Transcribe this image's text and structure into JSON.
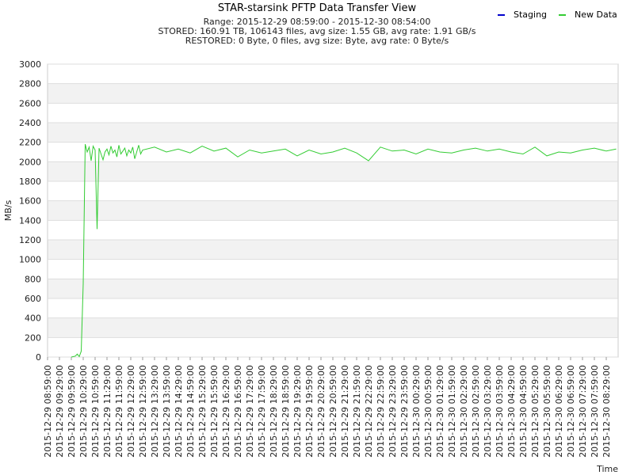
{
  "chart_data": {
    "type": "line",
    "title": "STAR-starsink PFTP Data Transfer View",
    "subtitles": [
      "Range: 2015-12-29 08:59:00 - 2015-12-30 08:54:00",
      "STORED: 160.91 TB, 106143 files, avg size: 1.55 GB, avg rate: 1.91 GB/s",
      "RESTORED: 0 Byte, 0 files, avg size:  Byte, avg rate: 0 Byte/s"
    ],
    "xlabel": "Time",
    "ylabel": "MB/s",
    "ylim": [
      0,
      3000
    ],
    "yticks": [
      0,
      200,
      400,
      600,
      800,
      1000,
      1200,
      1400,
      1600,
      1800,
      2000,
      2200,
      2400,
      2600,
      2800,
      3000
    ],
    "grid": true,
    "legend_position": "top-right",
    "xlim": [
      "2015-12-29 08:59:00",
      "2015-12-30 08:59:00"
    ],
    "xticks": [
      "2015-12-29 08:59:00",
      "2015-12-29 09:29:00",
      "2015-12-29 09:59:00",
      "2015-12-29 10:29:00",
      "2015-12-29 10:59:00",
      "2015-12-29 11:29:00",
      "2015-12-29 11:59:00",
      "2015-12-29 12:29:00",
      "2015-12-29 12:59:00",
      "2015-12-29 13:29:00",
      "2015-12-29 13:59:00",
      "2015-12-29 14:29:00",
      "2015-12-29 14:59:00",
      "2015-12-29 15:29:00",
      "2015-12-29 15:59:00",
      "2015-12-29 16:29:00",
      "2015-12-29 16:59:00",
      "2015-12-29 17:29:00",
      "2015-12-29 17:59:00",
      "2015-12-29 18:29:00",
      "2015-12-29 18:59:00",
      "2015-12-29 19:29:00",
      "2015-12-29 19:59:00",
      "2015-12-29 20:29:00",
      "2015-12-29 20:59:00",
      "2015-12-29 21:29:00",
      "2015-12-29 21:59:00",
      "2015-12-29 22:29:00",
      "2015-12-29 22:59:00",
      "2015-12-29 23:29:00",
      "2015-12-29 23:59:00",
      "2015-12-30 00:29:00",
      "2015-12-30 00:59:00",
      "2015-12-30 01:29:00",
      "2015-12-30 01:59:00",
      "2015-12-30 02:29:00",
      "2015-12-30 02:59:00",
      "2015-12-30 03:29:00",
      "2015-12-30 03:59:00",
      "2015-12-30 04:29:00",
      "2015-12-30 04:59:00",
      "2015-12-30 05:29:00",
      "2015-12-30 05:59:00",
      "2015-12-30 06:29:00",
      "2015-12-30 06:59:00",
      "2015-12-30 07:29:00",
      "2015-12-30 07:59:00",
      "2015-12-30 08:29:00"
    ],
    "series": [
      {
        "name": "Staging",
        "color": "#0000cc",
        "x": [],
        "values": []
      },
      {
        "name": "New Data",
        "color": "#33cc33",
        "x": [
          "2015-12-29 09:59:00",
          "2015-12-29 10:09:00",
          "2015-12-29 10:14:00",
          "2015-12-29 10:19:00",
          "2015-12-29 10:24:00",
          "2015-12-29 10:29:00",
          "2015-12-29 10:34:00",
          "2015-12-29 10:39:00",
          "2015-12-29 10:44:00",
          "2015-12-29 10:49:00",
          "2015-12-29 10:54:00",
          "2015-12-29 10:59:00",
          "2015-12-29 11:04:00",
          "2015-12-29 11:09:00",
          "2015-12-29 11:14:00",
          "2015-12-29 11:19:00",
          "2015-12-29 11:24:00",
          "2015-12-29 11:29:00",
          "2015-12-29 11:34:00",
          "2015-12-29 11:39:00",
          "2015-12-29 11:44:00",
          "2015-12-29 11:49:00",
          "2015-12-29 11:54:00",
          "2015-12-29 11:59:00",
          "2015-12-29 12:04:00",
          "2015-12-29 12:09:00",
          "2015-12-29 12:14:00",
          "2015-12-29 12:19:00",
          "2015-12-29 12:24:00",
          "2015-12-29 12:29:00",
          "2015-12-29 12:34:00",
          "2015-12-29 12:39:00",
          "2015-12-29 12:44:00",
          "2015-12-29 12:49:00",
          "2015-12-29 12:54:00",
          "2015-12-29 12:59:00",
          "2015-12-29 13:29:00",
          "2015-12-29 13:59:00",
          "2015-12-29 14:29:00",
          "2015-12-29 14:59:00",
          "2015-12-29 15:29:00",
          "2015-12-29 15:59:00",
          "2015-12-29 16:29:00",
          "2015-12-29 16:59:00",
          "2015-12-29 17:29:00",
          "2015-12-29 17:59:00",
          "2015-12-29 18:29:00",
          "2015-12-29 18:59:00",
          "2015-12-29 19:29:00",
          "2015-12-29 19:59:00",
          "2015-12-29 20:29:00",
          "2015-12-29 20:59:00",
          "2015-12-29 21:29:00",
          "2015-12-29 21:59:00",
          "2015-12-29 22:29:00",
          "2015-12-29 22:59:00",
          "2015-12-29 23:29:00",
          "2015-12-29 23:59:00",
          "2015-12-30 00:29:00",
          "2015-12-30 00:59:00",
          "2015-12-30 01:29:00",
          "2015-12-30 01:59:00",
          "2015-12-30 02:29:00",
          "2015-12-30 02:59:00",
          "2015-12-30 03:29:00",
          "2015-12-30 03:59:00",
          "2015-12-30 04:29:00",
          "2015-12-30 04:59:00",
          "2015-12-30 05:29:00",
          "2015-12-30 05:59:00",
          "2015-12-30 06:29:00",
          "2015-12-30 06:59:00",
          "2015-12-30 07:29:00",
          "2015-12-30 07:59:00",
          "2015-12-30 08:29:00",
          "2015-12-30 08:54:00"
        ],
        "values": [
          0,
          10,
          30,
          5,
          60,
          750,
          2180,
          2100,
          2150,
          2010,
          2160,
          2120,
          1310,
          2140,
          2080,
          2020,
          2100,
          2130,
          2070,
          2160,
          2090,
          2120,
          2050,
          2170,
          2080,
          2110,
          2140,
          2060,
          2120,
          2090,
          2150,
          2030,
          2100,
          2170,
          2080,
          2120,
          2150,
          2100,
          2130,
          2090,
          2160,
          2110,
          2140,
          2050,
          2120,
          2090,
          2110,
          2130,
          2060,
          2120,
          2080,
          2100,
          2140,
          2090,
          2010,
          2150,
          2110,
          2120,
          2080,
          2130,
          2100,
          2090,
          2120,
          2140,
          2110,
          2130,
          2100,
          2080,
          2150,
          2060,
          2100,
          2090,
          2120,
          2140,
          2110,
          2130
        ]
      }
    ]
  }
}
